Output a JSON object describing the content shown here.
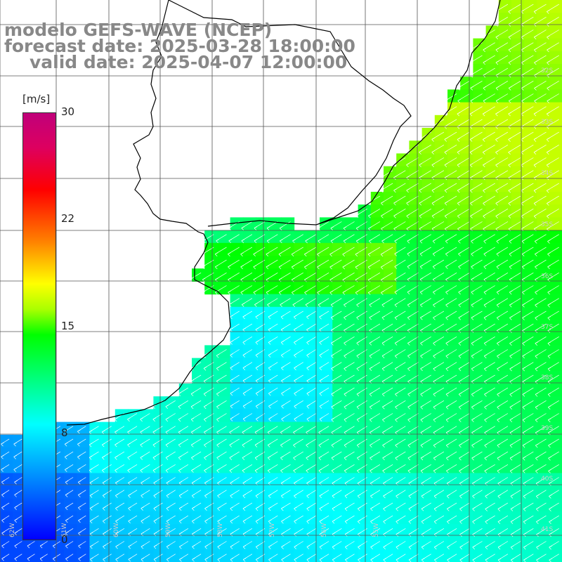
{
  "title": {
    "model": "modelo GEFS-WAVE (NCEP)",
    "forecast": "forecast date: 2025-03-28 18:00:00",
    "valid": "valid date: 2025-04-07 12:00:00"
  },
  "colorbar": {
    "unit": "[m/s]",
    "ticks": [
      "30",
      "22",
      "15",
      "8",
      "0"
    ],
    "tick_values": [
      30,
      22,
      15,
      8,
      0
    ],
    "range": [
      0,
      30
    ]
  },
  "lat_labels": [
    "32S",
    "33S",
    "34S",
    "35S",
    "36S",
    "37S",
    "38S",
    "39S",
    "40S",
    "41S"
  ],
  "lon_labels": [
    "62W",
    "61W",
    "60W",
    "59W",
    "58W",
    "57W",
    "56W",
    "55W"
  ],
  "colors": {
    "land": "#ffffff",
    "grid": "#555555",
    "coast": "#000000",
    "arrows": "#ffffff",
    "title": "#888888"
  },
  "vector_direction": "toward south-west"
}
